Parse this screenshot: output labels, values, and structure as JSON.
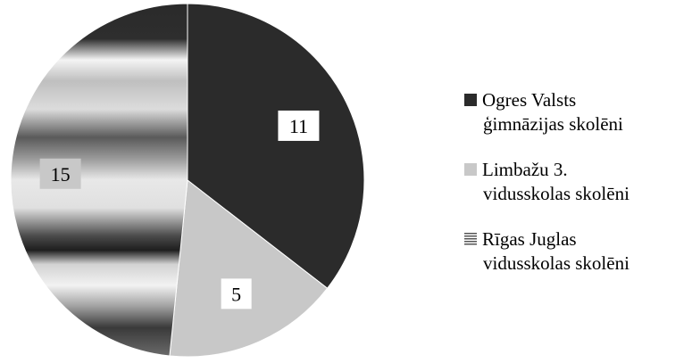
{
  "chart_data": {
    "type": "pie",
    "title": "",
    "slices": [
      {
        "label_lines": [
          "Ogres Valsts",
          "ģimnāzijas skolēni"
        ],
        "value": 11,
        "fill": "#2b2b2b",
        "pattern": "solid"
      },
      {
        "label_lines": [
          "Limbažu 3.",
          "vidusskolas skolēni"
        ],
        "value": 5,
        "fill": "#c8c8c8",
        "pattern": "solid"
      },
      {
        "label_lines": [
          "Rīgas Juglas",
          "vidusskolas skolēni"
        ],
        "value": 15,
        "fill": "#9a9a9a",
        "pattern": "horizontal-metallic-gradient"
      }
    ],
    "start_angle_deg": 0,
    "direction": "clockwise",
    "legend_position": "right",
    "data_labels": true
  },
  "colors": {
    "background": "#ffffff",
    "label_box": "#ffffff",
    "outline": "#000000"
  }
}
